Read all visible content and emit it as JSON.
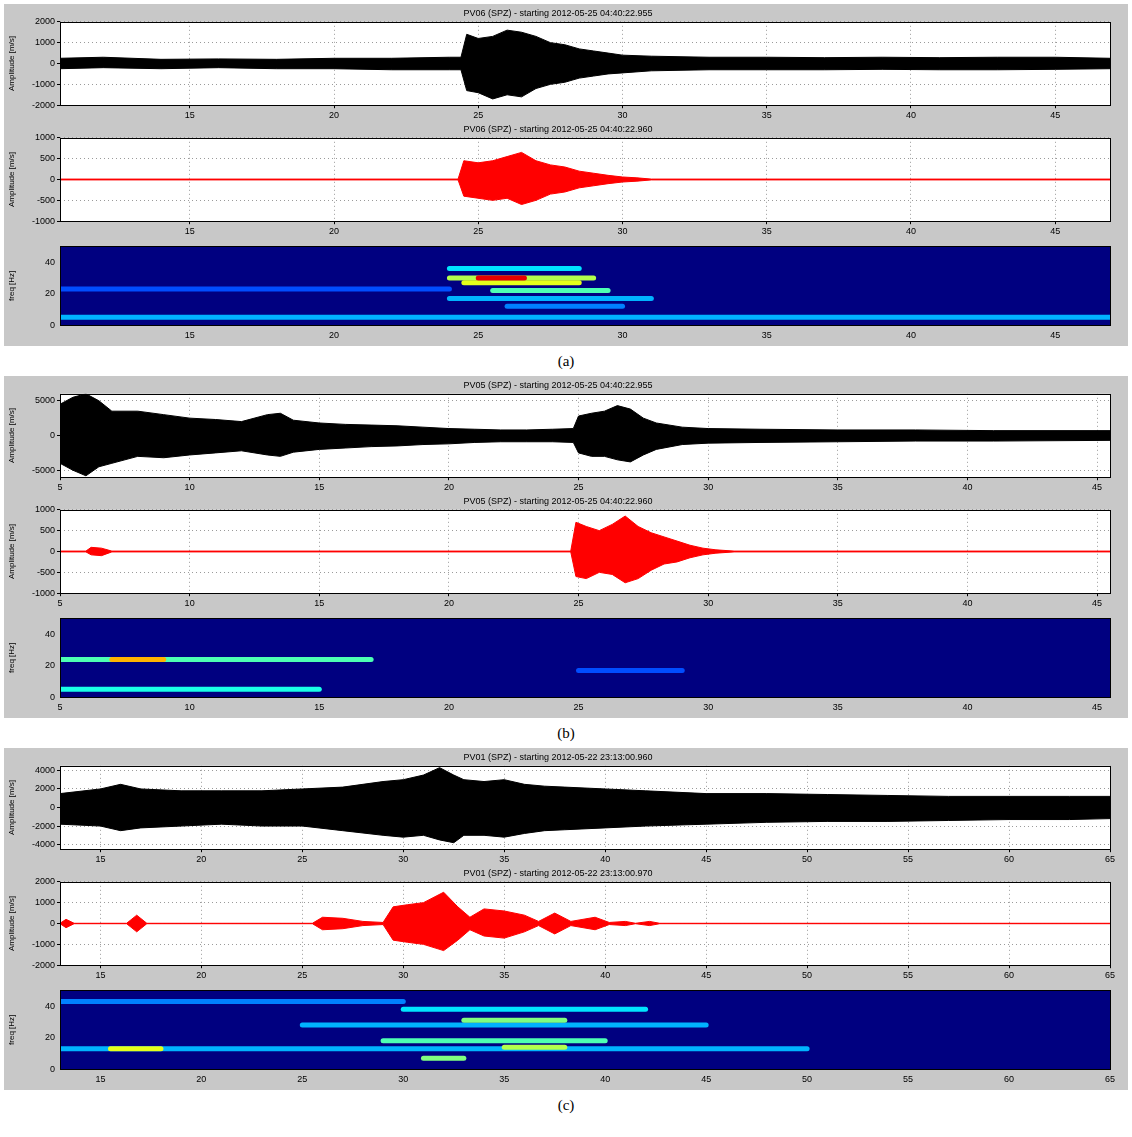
{
  "chart_data": [
    {
      "type": "line",
      "title": "PV06 (SPZ) - starting 2012-05-25 04:40:22.955",
      "y_label": "Amplitude [m/s]",
      "color": "#000000",
      "grid": true,
      "xlim": [
        10.5,
        46.9
      ],
      "xticks": [
        15,
        20,
        25,
        30,
        35,
        40,
        45
      ],
      "ylim": [
        -2000,
        2000
      ],
      "yticks": [
        -2000,
        -1000,
        0,
        1000,
        2000
      ],
      "x": [
        10.5,
        12,
        14,
        16,
        18,
        20,
        22,
        24,
        24.4,
        24.6,
        25,
        25.5,
        26,
        26.5,
        27,
        27.5,
        28,
        28.5,
        29,
        29.5,
        30,
        31,
        33,
        35,
        37,
        39,
        41,
        43,
        45,
        46.9
      ],
      "max": [
        250,
        300,
        200,
        220,
        200,
        250,
        250,
        300,
        300,
        1400,
        1200,
        1300,
        1600,
        1500,
        1300,
        1000,
        900,
        700,
        600,
        500,
        400,
        350,
        300,
        300,
        280,
        300,
        280,
        300,
        300,
        250
      ],
      "min": [
        -250,
        -200,
        -250,
        -200,
        -250,
        -250,
        -300,
        -300,
        -300,
        -1300,
        -1400,
        -1700,
        -1500,
        -1600,
        -1200,
        -1000,
        -900,
        -700,
        -600,
        -500,
        -450,
        -350,
        -300,
        -300,
        -300,
        -280,
        -300,
        -300,
        -280,
        -250
      ]
    },
    {
      "type": "line",
      "title": "PV06 (SPZ) - starting 2012-05-25 04:40:22.960",
      "y_label": "Amplitude [m/s]",
      "color": "#ff0000",
      "grid": true,
      "xlim": [
        10.5,
        46.9
      ],
      "xticks": [
        15,
        20,
        25,
        30,
        35,
        40,
        45
      ],
      "ylim": [
        -1000,
        1000
      ],
      "yticks": [
        -1000,
        -500,
        0,
        500,
        1000
      ],
      "x": [
        10.5,
        15,
        20,
        24.3,
        24.5,
        25,
        25.5,
        26,
        26.5,
        27,
        27.5,
        28,
        28.5,
        29,
        29.5,
        30,
        30.5,
        31,
        35,
        40,
        46.9
      ],
      "max": [
        10,
        10,
        10,
        10,
        450,
        400,
        450,
        550,
        650,
        450,
        350,
        300,
        200,
        150,
        100,
        60,
        40,
        10,
        10,
        10,
        10
      ],
      "min": [
        -10,
        -10,
        -10,
        -10,
        -400,
        -450,
        -500,
        -450,
        -600,
        -500,
        -350,
        -300,
        -200,
        -150,
        -100,
        -60,
        -40,
        -10,
        -10,
        -10,
        -10
      ]
    },
    {
      "type": "heatmap",
      "y_label": "freq [Hz]",
      "grid": false,
      "xlim": [
        10.5,
        46.9
      ],
      "xticks": [
        15,
        20,
        25,
        30,
        35,
        40,
        45
      ],
      "ylim": [
        0,
        50
      ],
      "yticks": [
        0,
        20,
        40
      ],
      "cells": [
        {
          "x": [
            10.5,
            46.9
          ],
          "y": 5,
          "value": 0.3
        },
        {
          "x": [
            10.5,
            24
          ],
          "y": 23,
          "value": 0.2
        },
        {
          "x": [
            24,
            28.5
          ],
          "y": 36,
          "value": 0.35
        },
        {
          "x": [
            24,
            29
          ],
          "y": 30,
          "value": 0.55
        },
        {
          "x": [
            25,
            26.6
          ],
          "y": 30,
          "value": 0.9
        },
        {
          "x": [
            24.5,
            28.5
          ],
          "y": 27,
          "value": 0.6
        },
        {
          "x": [
            25.5,
            29.5
          ],
          "y": 22,
          "value": 0.45
        },
        {
          "x": [
            24,
            31
          ],
          "y": 17,
          "value": 0.3
        },
        {
          "x": [
            26,
            30
          ],
          "y": 12,
          "value": 0.25
        }
      ]
    },
    {
      "type": "line",
      "title": "PV05 (SPZ) - starting 2012-05-25 04:40:22.955",
      "y_label": "Amplitude [m/s]",
      "color": "#000000",
      "grid": true,
      "xlim": [
        5,
        45.5
      ],
      "xticks": [
        5,
        10,
        15,
        20,
        25,
        30,
        35,
        40,
        45
      ],
      "ylim": [
        -6000,
        6000
      ],
      "yticks": [
        -5000,
        0,
        5000
      ],
      "x": [
        5,
        5.5,
        6,
        6.5,
        7,
        8,
        9,
        10,
        11,
        12,
        13,
        13.5,
        14,
        15,
        16,
        17,
        18,
        19,
        20,
        21,
        22,
        23,
        24,
        24.8,
        25,
        25.5,
        26,
        26.5,
        27,
        27.5,
        28,
        29,
        30,
        32,
        35,
        38,
        41,
        45.5
      ],
      "max": [
        4500,
        5500,
        6000,
        5000,
        3500,
        3500,
        3000,
        2500,
        2300,
        2000,
        3000,
        3200,
        2200,
        1800,
        1600,
        1500,
        1400,
        1200,
        1000,
        900,
        800,
        800,
        900,
        1000,
        2800,
        3200,
        3500,
        4300,
        3800,
        2500,
        1800,
        1200,
        1000,
        900,
        800,
        800,
        700,
        700
      ],
      "min": [
        -4000,
        -5000,
        -5800,
        -4500,
        -4000,
        -3000,
        -3200,
        -2800,
        -2500,
        -2200,
        -2800,
        -3000,
        -2400,
        -2000,
        -1800,
        -1600,
        -1500,
        -1300,
        -1200,
        -1000,
        -900,
        -900,
        -900,
        -1000,
        -2500,
        -3000,
        -3000,
        -3500,
        -3800,
        -2800,
        -2000,
        -1300,
        -1100,
        -1000,
        -900,
        -800,
        -800,
        -700
      ]
    },
    {
      "type": "line",
      "title": "PV05 (SPZ) - starting 2012-05-25 04:40:22.960",
      "y_label": "Amplitude [m/s]",
      "color": "#ff0000",
      "grid": true,
      "xlim": [
        5,
        45.5
      ],
      "xticks": [
        5,
        10,
        15,
        20,
        25,
        30,
        35,
        40,
        45
      ],
      "ylim": [
        -1000,
        1000
      ],
      "yticks": [
        -1000,
        -500,
        0,
        500,
        1000
      ],
      "x": [
        5,
        6,
        6.2,
        6.6,
        7,
        15,
        24.7,
        24.9,
        25.3,
        25.8,
        26.3,
        26.8,
        27.3,
        27.8,
        28.3,
        28.8,
        29.3,
        29.8,
        30.3,
        31,
        40,
        45.5
      ],
      "max": [
        10,
        10,
        100,
        80,
        10,
        10,
        10,
        700,
        600,
        500,
        650,
        850,
        600,
        450,
        350,
        250,
        150,
        80,
        40,
        10,
        10,
        10
      ],
      "min": [
        -10,
        -10,
        -80,
        -100,
        -10,
        -10,
        -10,
        -600,
        -650,
        -500,
        -550,
        -750,
        -650,
        -450,
        -300,
        -250,
        -150,
        -80,
        -40,
        -10,
        -10,
        -10
      ]
    },
    {
      "type": "heatmap",
      "y_label": "freq [Hz]",
      "grid": false,
      "xlim": [
        5,
        45.5
      ],
      "xticks": [
        5,
        10,
        15,
        20,
        25,
        30,
        35,
        40,
        45
      ],
      "ylim": [
        0,
        50
      ],
      "yticks": [
        0,
        20,
        40
      ],
      "cells": [
        {
          "x": [
            5,
            17
          ],
          "y": 24,
          "value": 0.45
        },
        {
          "x": [
            7,
            9
          ],
          "y": 24,
          "value": 0.7
        },
        {
          "x": [
            5,
            15
          ],
          "y": 5,
          "value": 0.4
        },
        {
          "x": [
            25,
            29
          ],
          "y": 17,
          "value": 0.2
        }
      ]
    },
    {
      "type": "line",
      "title": "PV01 (SPZ) - starting 2012-05-22 23:13:00.960",
      "y_label": "Amplitude [m/s]",
      "color": "#000000",
      "grid": true,
      "xlim": [
        13,
        65
      ],
      "xticks": [
        15,
        20,
        25,
        30,
        35,
        40,
        45,
        50,
        55,
        60,
        65
      ],
      "ylim": [
        -4500,
        4500
      ],
      "yticks": [
        -4000,
        -2000,
        0,
        2000,
        4000
      ],
      "x": [
        13,
        15,
        16,
        17,
        19,
        21,
        23,
        25,
        27,
        29,
        30,
        31,
        31.8,
        32.5,
        33,
        34,
        35,
        36,
        37,
        38,
        40,
        42,
        45,
        48,
        51,
        54,
        57,
        60,
        63,
        65
      ],
      "max": [
        1500,
        2000,
        2500,
        2000,
        1800,
        1800,
        1800,
        2000,
        2200,
        2800,
        3000,
        3500,
        4300,
        3500,
        3000,
        2800,
        3000,
        2500,
        2300,
        2200,
        2000,
        1800,
        1500,
        1500,
        1400,
        1300,
        1200,
        1200,
        1200,
        1200
      ],
      "min": [
        -1800,
        -2000,
        -2500,
        -2200,
        -2000,
        -1800,
        -2000,
        -2000,
        -2500,
        -3000,
        -3200,
        -3000,
        -3500,
        -3800,
        -3000,
        -3000,
        -3200,
        -2800,
        -2500,
        -2400,
        -2200,
        -2000,
        -1800,
        -1600,
        -1500,
        -1500,
        -1400,
        -1300,
        -1300,
        -1200
      ]
    },
    {
      "type": "line",
      "title": "PV01 (SPZ) - starting 2012-05-22 23:13:00.970",
      "y_label": "Amplitude [m/s]",
      "color": "#ff0000",
      "grid": true,
      "xlim": [
        13,
        65
      ],
      "xticks": [
        15,
        20,
        25,
        30,
        35,
        40,
        45,
        50,
        55,
        60,
        65
      ],
      "ylim": [
        -2000,
        2000
      ],
      "yticks": [
        -2000,
        -1000,
        0,
        1000,
        2000
      ],
      "x": [
        13,
        13.3,
        13.7,
        16.3,
        16.8,
        17.3,
        25.5,
        26,
        27,
        28,
        29,
        29.5,
        30.2,
        31,
        32,
        32.7,
        33.3,
        34,
        35,
        36,
        36.7,
        37.5,
        38.3,
        39.5,
        40.2,
        41,
        41.5,
        42.2,
        42.7,
        50,
        65
      ],
      "max": [
        10,
        200,
        10,
        10,
        400,
        10,
        10,
        300,
        250,
        100,
        50,
        800,
        900,
        1000,
        1500,
        800,
        300,
        700,
        600,
        400,
        100,
        500,
        100,
        300,
        50,
        100,
        10,
        100,
        10,
        10,
        10
      ],
      "min": [
        -10,
        -200,
        -10,
        -10,
        -400,
        -10,
        -10,
        -300,
        -250,
        -100,
        -50,
        -800,
        -900,
        -1000,
        -1300,
        -800,
        -300,
        -600,
        -700,
        -400,
        -100,
        -500,
        -100,
        -300,
        -50,
        -100,
        -10,
        -100,
        -10,
        -10,
        -10
      ]
    },
    {
      "type": "heatmap",
      "y_label": "freq [Hz]",
      "grid": false,
      "xlim": [
        13,
        65
      ],
      "xticks": [
        15,
        20,
        25,
        30,
        35,
        40,
        45,
        50,
        55,
        60,
        65
      ],
      "ylim": [
        0,
        50
      ],
      "yticks": [
        0,
        20,
        40
      ],
      "cells": [
        {
          "x": [
            13,
            50
          ],
          "y": 13,
          "value": 0.3
        },
        {
          "x": [
            15.5,
            18
          ],
          "y": 13,
          "value": 0.6
        },
        {
          "x": [
            25,
            45
          ],
          "y": 28,
          "value": 0.3
        },
        {
          "x": [
            30,
            42
          ],
          "y": 38,
          "value": 0.35
        },
        {
          "x": [
            13,
            30
          ],
          "y": 43,
          "value": 0.25
        },
        {
          "x": [
            29,
            40
          ],
          "y": 18,
          "value": 0.45
        },
        {
          "x": [
            31,
            33
          ],
          "y": 7,
          "value": 0.5
        },
        {
          "x": [
            33,
            38
          ],
          "y": 31,
          "value": 0.5
        },
        {
          "x": [
            35,
            38
          ],
          "y": 14,
          "value": 0.55
        }
      ]
    }
  ],
  "panel_labels": [
    "(a)",
    "(b)",
    "(c)"
  ]
}
